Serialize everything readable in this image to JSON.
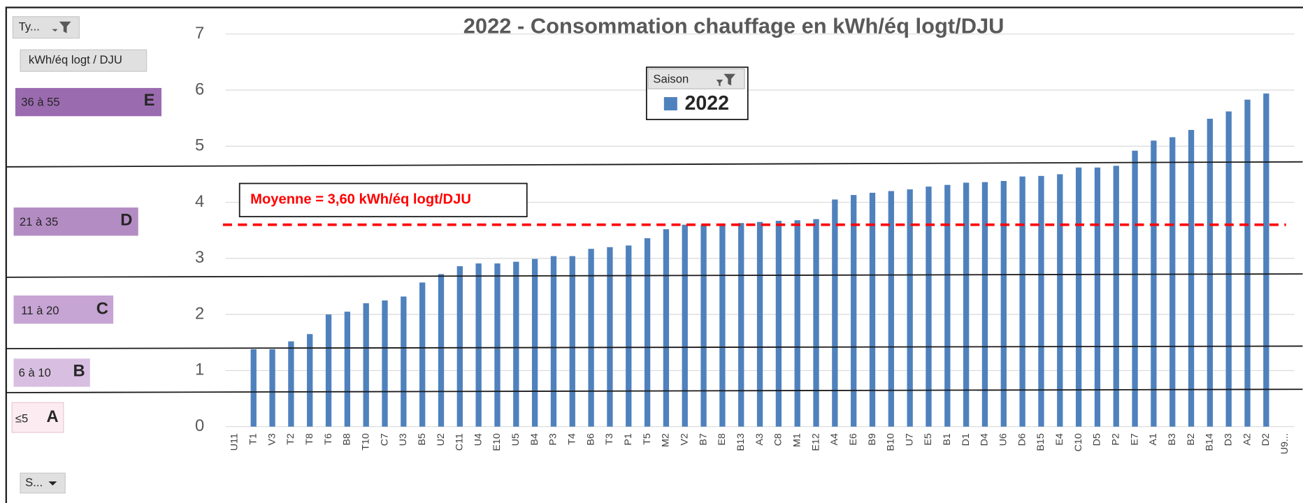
{
  "slicers": {
    "type_button": "Ty...",
    "header": "kWh/éq logt / DJU",
    "bands": [
      {
        "range": "36 à 55",
        "letter": "E"
      },
      {
        "range": "21 à 35",
        "letter": "D"
      },
      {
        "range": "11 à 20",
        "letter": "C"
      },
      {
        "range": "6 à 10",
        "letter": "B"
      },
      {
        "range": "≤5",
        "letter": "A"
      }
    ],
    "bottom_button": "S..."
  },
  "chart_data": {
    "type": "bar",
    "title": "2022 - Consommation chauffage en kWh/éq logt/DJU",
    "legend_title": "Saison",
    "annotation": "Moyenne = 3,60 kWh/éq logt/DJU",
    "mean": 3.6,
    "mean_color": "#ff0000",
    "categories": [
      "U11",
      "T1",
      "V3",
      "T2",
      "T8",
      "T6",
      "B8",
      "T10",
      "C7",
      "U3",
      "B5",
      "U2",
      "C11",
      "U4",
      "E10",
      "U5",
      "B4",
      "P3",
      "T4",
      "B6",
      "T3",
      "P1",
      "T5",
      "M2",
      "V2",
      "B7",
      "E8",
      "B13",
      "A3",
      "C8",
      "M1",
      "E12",
      "A4",
      "E6",
      "B9",
      "B10",
      "U7",
      "E5",
      "B1",
      "D1",
      "D4",
      "U6",
      "D6",
      "B15",
      "E4",
      "C10",
      "D5",
      "P2",
      "E7",
      "A1",
      "B3",
      "B2",
      "B14",
      "D3",
      "A2",
      "D2",
      "U9..."
    ],
    "series": [
      {
        "name": "2022",
        "color": "#4f81bd",
        "values": [
          null,
          1.38,
          1.38,
          1.52,
          1.65,
          2.0,
          2.05,
          2.2,
          2.25,
          2.32,
          2.57,
          2.72,
          2.86,
          2.91,
          2.91,
          2.94,
          2.99,
          3.04,
          3.04,
          3.17,
          3.2,
          3.23,
          3.36,
          3.52,
          3.6,
          3.6,
          3.62,
          3.63,
          3.65,
          3.67,
          3.68,
          3.7,
          4.05,
          4.13,
          4.17,
          4.2,
          4.23,
          4.28,
          4.31,
          4.35,
          4.36,
          4.38,
          4.46,
          4.47,
          4.5,
          4.62,
          4.62,
          4.65,
          4.92,
          5.1,
          5.16,
          5.29,
          5.49,
          5.62,
          5.83,
          5.94,
          null
        ]
      }
    ],
    "ylim": [
      0,
      7
    ],
    "yticks": [
      0,
      1,
      2,
      3,
      4,
      5,
      6,
      7
    ],
    "grid": true
  }
}
